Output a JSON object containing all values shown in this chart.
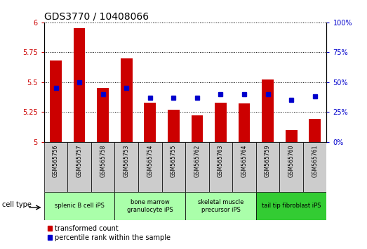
{
  "title": "GDS3770 / 10408066",
  "samples": [
    "GSM565756",
    "GSM565757",
    "GSM565758",
    "GSM565753",
    "GSM565754",
    "GSM565755",
    "GSM565762",
    "GSM565763",
    "GSM565764",
    "GSM565759",
    "GSM565760",
    "GSM565761"
  ],
  "red_values": [
    5.68,
    5.95,
    5.45,
    5.7,
    5.33,
    5.27,
    5.22,
    5.33,
    5.32,
    5.52,
    5.1,
    5.19
  ],
  "blue_values": [
    45,
    50,
    40,
    45,
    37,
    37,
    37,
    40,
    40,
    40,
    35,
    38
  ],
  "ylim_left": [
    5.0,
    6.0
  ],
  "ylim_right": [
    0,
    100
  ],
  "yticks_left": [
    5.0,
    5.25,
    5.5,
    5.75,
    6.0
  ],
  "yticks_right": [
    0,
    25,
    50,
    75,
    100
  ],
  "ytick_labels_left": [
    "5",
    "5.25",
    "5.5",
    "5.75",
    "6"
  ],
  "ytick_labels_right": [
    "0%",
    "25%",
    "50%",
    "75%",
    "100%"
  ],
  "bar_width": 0.5,
  "bar_color": "#cc0000",
  "dot_color": "#0000cc",
  "cell_types": [
    {
      "label": "splenic B cell iPS",
      "start": 0,
      "end": 3,
      "color": "#aaffaa"
    },
    {
      "label": "bone marrow\ngranulocyte iPS",
      "start": 3,
      "end": 6,
      "color": "#aaffaa"
    },
    {
      "label": "skeletal muscle\nprecursor iPS",
      "start": 6,
      "end": 9,
      "color": "#aaffaa"
    },
    {
      "label": "tail tip fibroblast iPS",
      "start": 9,
      "end": 12,
      "color": "#33cc33"
    }
  ],
  "legend_red": "transformed count",
  "legend_blue": "percentile rank within the sample",
  "cell_type_label": "cell type",
  "background_color": "#ffffff",
  "tick_color_left": "#cc0000",
  "tick_color_right": "#0000cc",
  "sample_bg_color": "#cccccc",
  "title_fontsize": 10,
  "tick_fontsize": 7,
  "label_fontsize": 7,
  "legend_fontsize": 7
}
